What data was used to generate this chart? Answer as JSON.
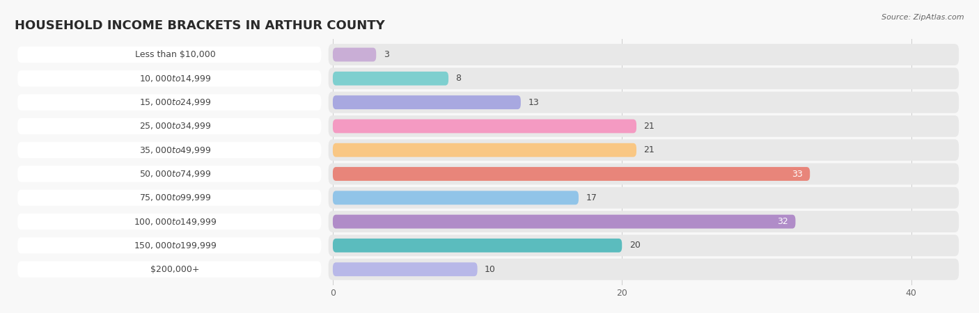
{
  "title": "HOUSEHOLD INCOME BRACKETS IN ARTHUR COUNTY",
  "source": "Source: ZipAtlas.com",
  "categories": [
    "Less than $10,000",
    "$10,000 to $14,999",
    "$15,000 to $24,999",
    "$25,000 to $34,999",
    "$35,000 to $49,999",
    "$50,000 to $74,999",
    "$75,000 to $99,999",
    "$100,000 to $149,999",
    "$150,000 to $199,999",
    "$200,000+"
  ],
  "values": [
    3,
    8,
    13,
    21,
    21,
    33,
    17,
    32,
    20,
    10
  ],
  "bar_colors": [
    "#c9aed6",
    "#7ecfcf",
    "#a8a8e0",
    "#f49ac2",
    "#f9c784",
    "#e8857a",
    "#91c4e8",
    "#b08cc8",
    "#5bbcbe",
    "#b8b8e8"
  ],
  "background_color": "#f8f8f8",
  "bar_bg_color": "#e8e8e8",
  "label_bg_color": "#ffffff",
  "xlim_data": [
    0,
    43
  ],
  "xticks": [
    0,
    20,
    40
  ],
  "title_fontsize": 13,
  "label_fontsize": 9,
  "value_fontsize": 9,
  "bar_height": 0.58,
  "value_inside_color": "#ffffff",
  "value_outside_color": "#444444",
  "inside_threshold": 30
}
